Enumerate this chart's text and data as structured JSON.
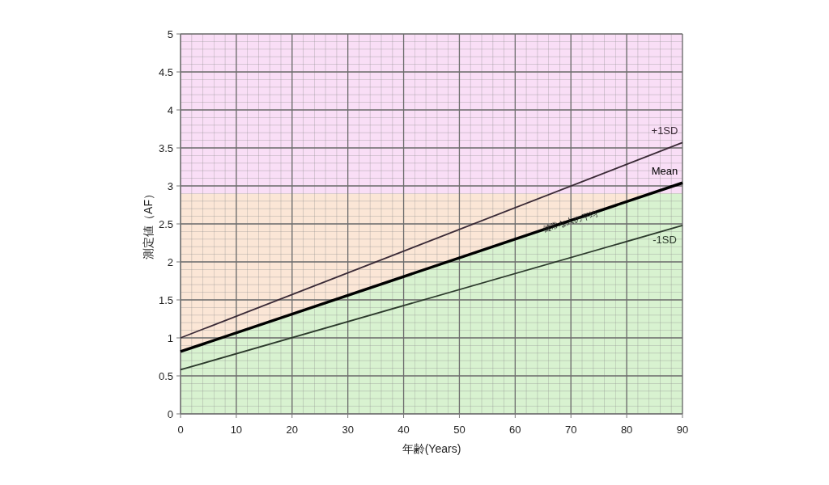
{
  "chart_data": {
    "type": "line",
    "xlabel": "年齢(Years)",
    "ylabel": "測定値（AF）",
    "x": [
      0,
      90
    ],
    "series": [
      {
        "name": "+1SD",
        "color": "#3a2a36",
        "values": [
          1.0,
          3.57
        ]
      },
      {
        "name": "Mean",
        "type": "area",
        "color": "#d8f2d0",
        "values": [
          0.82,
          3.04
        ]
      },
      {
        "name": "-1SD",
        "color": "#2c3a2c",
        "values": [
          0.58,
          2.48
        ]
      }
    ],
    "bands": [
      {
        "axis": "y",
        "from": 0,
        "to": 2.9,
        "color": "#fbe6d6"
      },
      {
        "axis": "y",
        "from": 2.9,
        "to": 5,
        "color": "#f9def6"
      }
    ],
    "annotations": [
      {
        "text": "健常な人の平均",
        "x": 70,
        "y": 2.5
      }
    ],
    "xlim": [
      0,
      90
    ],
    "xticks": [
      0,
      10,
      20,
      30,
      40,
      50,
      60,
      70,
      80,
      90
    ],
    "ylim": [
      0,
      5
    ],
    "yticks": [
      0,
      0.5,
      1,
      1.5,
      2,
      2.5,
      3,
      3.5,
      4,
      4.5,
      5
    ],
    "grid": true,
    "legend": false,
    "marker": "none",
    "line_style": "solid"
  }
}
